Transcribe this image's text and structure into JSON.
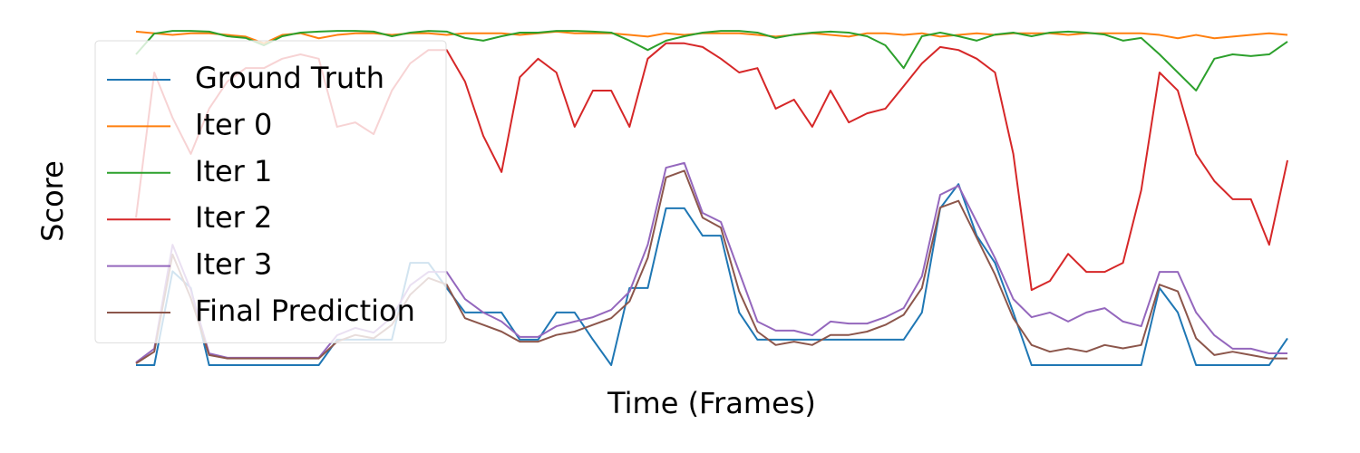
{
  "chart_data": {
    "type": "line",
    "xlabel": "Time (Frames)",
    "ylabel": "Score",
    "ylim": [
      0,
      1
    ],
    "grid": false,
    "legend": "upper left",
    "series": [
      {
        "name": "Ground Truth",
        "color": "#1f77b4",
        "values": [
          0,
          0,
          0.28,
          0.23,
          0,
          0,
          0,
          0,
          0,
          0,
          0,
          0.076,
          0.076,
          0.076,
          0.076,
          0.305,
          0.305,
          0.23,
          0.157,
          0.157,
          0.157,
          0.076,
          0.076,
          0.157,
          0.157,
          0.076,
          0,
          0.23,
          0.23,
          0.468,
          0.468,
          0.386,
          0.386,
          0.157,
          0.076,
          0.076,
          0.076,
          0.076,
          0.076,
          0.076,
          0.076,
          0.076,
          0.076,
          0.157,
          0.468,
          0.54,
          0.386,
          0.305,
          0.157,
          0,
          0,
          0,
          0,
          0,
          0,
          0,
          0.23,
          0.157,
          0,
          0,
          0,
          0,
          0,
          0.08
        ]
      },
      {
        "name": "Iter 0",
        "color": "#ff7f0e",
        "values": [
          0.995,
          0.99,
          0.985,
          0.99,
          0.99,
          0.985,
          0.98,
          0.96,
          0.985,
          0.99,
          0.975,
          0.985,
          0.99,
          0.99,
          0.985,
          0.99,
          0.99,
          0.985,
          0.99,
          0.99,
          0.99,
          0.985,
          0.99,
          0.995,
          0.99,
          0.99,
          0.99,
          0.985,
          0.98,
          0.99,
          0.985,
          0.99,
          0.99,
          0.99,
          0.985,
          0.98,
          0.985,
          0.99,
          0.985,
          0.98,
          0.99,
          0.99,
          0.985,
          0.99,
          0.98,
          0.985,
          0.99,
          0.985,
          0.99,
          0.99,
          0.99,
          0.985,
          0.99,
          0.99,
          0.99,
          0.99,
          0.985,
          0.975,
          0.985,
          0.975,
          0.98,
          0.985,
          0.99,
          0.985
        ]
      },
      {
        "name": "Iter 1",
        "color": "#2ca02c",
        "values": [
          0.927,
          0.989,
          0.997,
          0.997,
          0.995,
          0.981,
          0.976,
          0.954,
          0.981,
          0.992,
          0.995,
          0.997,
          0.997,
          0.995,
          0.981,
          0.992,
          0.997,
          0.995,
          0.976,
          0.968,
          0.981,
          0.992,
          0.992,
          0.997,
          0.997,
          0.995,
          0.992,
          0.968,
          0.94,
          0.968,
          0.981,
          0.992,
          0.997,
          0.997,
          0.992,
          0.976,
          0.986,
          0.992,
          0.995,
          0.992,
          0.981,
          0.954,
          0.886,
          0.981,
          0.992,
          0.981,
          0.968,
          0.986,
          0.992,
          0.981,
          0.992,
          0.995,
          0.992,
          0.986,
          0.968,
          0.976,
          0.927,
          0.873,
          0.819,
          0.914,
          0.927,
          0.922,
          0.927,
          0.965
        ]
      },
      {
        "name": "Iter 2",
        "color": "#d62728",
        "values": [
          0.44,
          0.873,
          0.738,
          0.63,
          0.765,
          0.846,
          0.886,
          0.886,
          0.914,
          0.927,
          0.914,
          0.711,
          0.724,
          0.689,
          0.819,
          0.9,
          0.94,
          0.94,
          0.846,
          0.684,
          0.576,
          0.859,
          0.914,
          0.873,
          0.711,
          0.819,
          0.819,
          0.711,
          0.914,
          0.96,
          0.96,
          0.949,
          0.914,
          0.873,
          0.886,
          0.765,
          0.792,
          0.711,
          0.819,
          0.724,
          0.751,
          0.765,
          0.832,
          0.9,
          0.949,
          0.94,
          0.914,
          0.873,
          0.63,
          0.224,
          0.251,
          0.332,
          0.278,
          0.278,
          0.305,
          0.522,
          0.873,
          0.819,
          0.63,
          0.549,
          0.495,
          0.495,
          0.359,
          0.611
        ]
      },
      {
        "name": "Iter 3",
        "color": "#9467bd",
        "values": [
          0.008,
          0.049,
          0.359,
          0.224,
          0.035,
          0.022,
          0.022,
          0.022,
          0.022,
          0.022,
          0.022,
          0.089,
          0.111,
          0.097,
          0.143,
          0.238,
          0.278,
          0.278,
          0.197,
          0.157,
          0.13,
          0.084,
          0.084,
          0.116,
          0.13,
          0.143,
          0.165,
          0.219,
          0.359,
          0.589,
          0.603,
          0.454,
          0.427,
          0.278,
          0.13,
          0.103,
          0.103,
          0.089,
          0.13,
          0.124,
          0.124,
          0.143,
          0.17,
          0.265,
          0.508,
          0.535,
          0.427,
          0.319,
          0.197,
          0.143,
          0.157,
          0.13,
          0.157,
          0.17,
          0.13,
          0.116,
          0.278,
          0.278,
          0.157,
          0.089,
          0.049,
          0.049,
          0.035,
          0.035
        ]
      },
      {
        "name": "Final Prediction",
        "color": "#8c564b",
        "values": [
          0.005,
          0.04,
          0.33,
          0.2,
          0.03,
          0.02,
          0.02,
          0.02,
          0.02,
          0.02,
          0.02,
          0.07,
          0.09,
          0.08,
          0.12,
          0.21,
          0.26,
          0.24,
          0.14,
          0.12,
          0.1,
          0.07,
          0.07,
          0.09,
          0.1,
          0.12,
          0.14,
          0.19,
          0.32,
          0.56,
          0.58,
          0.44,
          0.41,
          0.22,
          0.1,
          0.06,
          0.07,
          0.06,
          0.09,
          0.09,
          0.1,
          0.12,
          0.15,
          0.23,
          0.47,
          0.49,
          0.38,
          0.27,
          0.14,
          0.06,
          0.04,
          0.05,
          0.04,
          0.06,
          0.05,
          0.06,
          0.24,
          0.22,
          0.08,
          0.03,
          0.04,
          0.03,
          0.02,
          0.02
        ]
      }
    ]
  }
}
